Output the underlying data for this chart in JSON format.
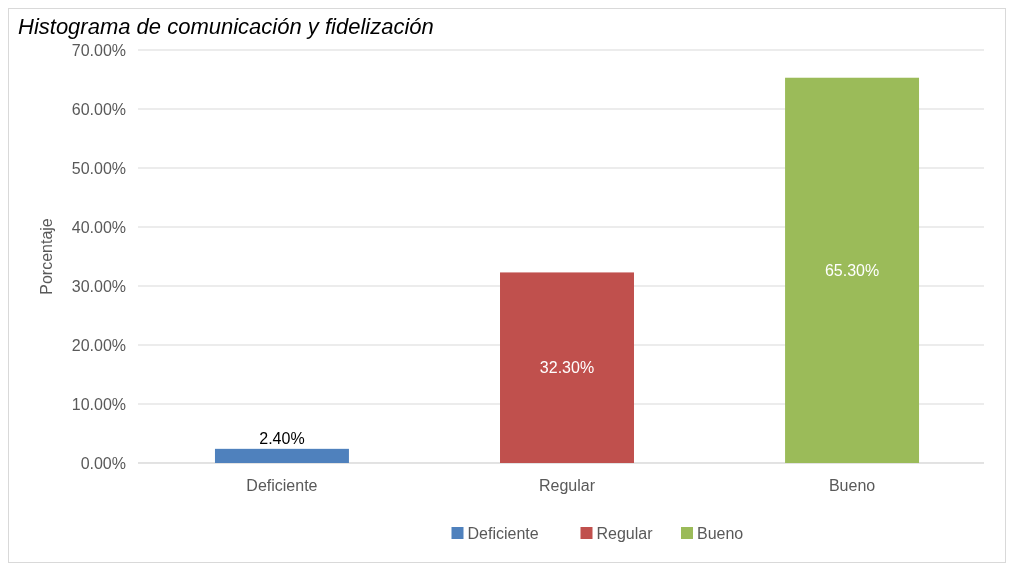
{
  "chart_data": {
    "type": "bar",
    "title": "Histograma de comunicación y fidelización",
    "ylabel": "Porcentaje",
    "categories": [
      "Deficiente",
      "Regular",
      "Bueno"
    ],
    "series": [
      {
        "name": "Deficiente",
        "color": "#4f81bd",
        "values": [
          2.4,
          null,
          null
        ],
        "value_labels": [
          "2.40%",
          null,
          null
        ]
      },
      {
        "name": "Regular",
        "color": "#c0504d",
        "values": [
          null,
          32.3,
          null
        ],
        "value_labels": [
          null,
          "32.30%",
          null
        ]
      },
      {
        "name": "Bueno",
        "color": "#9bbb59",
        "values": [
          null,
          null,
          65.3
        ],
        "value_labels": [
          null,
          null,
          "65.30%"
        ]
      }
    ],
    "ylim": [
      0,
      70
    ],
    "yticks": [
      {
        "value": 0,
        "label": "0.00%"
      },
      {
        "value": 10,
        "label": "10.00%"
      },
      {
        "value": 20,
        "label": "20.00%"
      },
      {
        "value": 30,
        "label": "30.00%"
      },
      {
        "value": 40,
        "label": "40.00%"
      },
      {
        "value": 50,
        "label": "50.00%"
      },
      {
        "value": 60,
        "label": "60.00%"
      },
      {
        "value": 70,
        "label": "70.00%"
      }
    ],
    "grid": "y",
    "legend": "bottom"
  }
}
